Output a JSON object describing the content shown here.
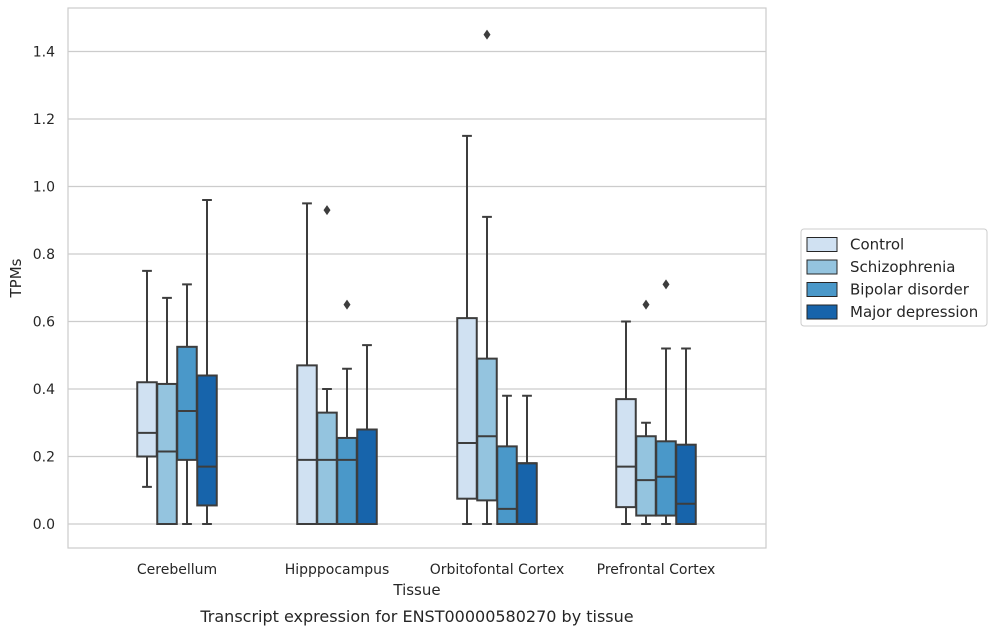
{
  "chart_data": {
    "type": "box",
    "title": "",
    "caption": "Transcript expression for ENST00000580270 by tissue",
    "xlabel": "Tissue",
    "ylabel": "TPMs",
    "ylim": [
      -0.07,
      1.53
    ],
    "yticks": [
      "0.0",
      "0.2",
      "0.4",
      "0.6",
      "0.8",
      "1.0",
      "1.2",
      "1.4"
    ],
    "grid": "horizontal",
    "legend_position": "right",
    "categories": [
      "Cerebellum",
      "Hipppocampus",
      "Orbitofontal Cortex",
      "Prefrontal Cortex"
    ],
    "series": [
      {
        "name": "Control",
        "color": "#d0e1f2",
        "boxes": [
          {
            "q1": 0.2,
            "median": 0.27,
            "q3": 0.42,
            "whisker_low": 0.11,
            "whisker_high": 0.75,
            "outliers": []
          },
          {
            "q1": 0.0,
            "median": 0.19,
            "q3": 0.47,
            "whisker_low": 0.0,
            "whisker_high": 0.95,
            "outliers": []
          },
          {
            "q1": 0.075,
            "median": 0.24,
            "q3": 0.61,
            "whisker_low": 0.0,
            "whisker_high": 1.15,
            "outliers": []
          },
          {
            "q1": 0.05,
            "median": 0.17,
            "q3": 0.37,
            "whisker_low": 0.0,
            "whisker_high": 0.6,
            "outliers": []
          }
        ]
      },
      {
        "name": "Schizophrenia",
        "color": "#94c4df",
        "boxes": [
          {
            "q1": 0.0,
            "median": 0.215,
            "q3": 0.415,
            "whisker_low": 0.0,
            "whisker_high": 0.67,
            "outliers": []
          },
          {
            "q1": 0.0,
            "median": 0.19,
            "q3": 0.33,
            "whisker_low": 0.0,
            "whisker_high": 0.4,
            "outliers": [
              0.93
            ]
          },
          {
            "q1": 0.07,
            "median": 0.26,
            "q3": 0.49,
            "whisker_low": 0.0,
            "whisker_high": 0.91,
            "outliers": [
              1.45
            ]
          },
          {
            "q1": 0.025,
            "median": 0.13,
            "q3": 0.26,
            "whisker_low": 0.0,
            "whisker_high": 0.3,
            "outliers": [
              0.65
            ]
          }
        ]
      },
      {
        "name": "Bipolar disorder",
        "color": "#4a98c9",
        "boxes": [
          {
            "q1": 0.19,
            "median": 0.335,
            "q3": 0.525,
            "whisker_low": 0.0,
            "whisker_high": 0.71,
            "outliers": []
          },
          {
            "q1": 0.0,
            "median": 0.19,
            "q3": 0.255,
            "whisker_low": 0.0,
            "whisker_high": 0.46,
            "outliers": [
              0.65
            ]
          },
          {
            "q1": 0.0,
            "median": 0.045,
            "q3": 0.23,
            "whisker_low": 0.0,
            "whisker_high": 0.38,
            "outliers": []
          },
          {
            "q1": 0.025,
            "median": 0.14,
            "q3": 0.245,
            "whisker_low": 0.0,
            "whisker_high": 0.52,
            "outliers": [
              0.71
            ]
          }
        ]
      },
      {
        "name": "Major depression",
        "color": "#1764ab",
        "boxes": [
          {
            "q1": 0.055,
            "median": 0.17,
            "q3": 0.44,
            "whisker_low": 0.0,
            "whisker_high": 0.96,
            "outliers": []
          },
          {
            "q1": 0.0,
            "median": 0.28,
            "q3": 0.28,
            "whisker_low": 0.0,
            "whisker_high": 0.53,
            "outliers": []
          },
          {
            "q1": 0.0,
            "median": 0.18,
            "q3": 0.18,
            "whisker_low": 0.0,
            "whisker_high": 0.38,
            "outliers": []
          },
          {
            "q1": 0.0,
            "median": 0.06,
            "q3": 0.235,
            "whisker_low": 0.0,
            "whisker_high": 0.52,
            "outliers": []
          }
        ]
      }
    ]
  }
}
